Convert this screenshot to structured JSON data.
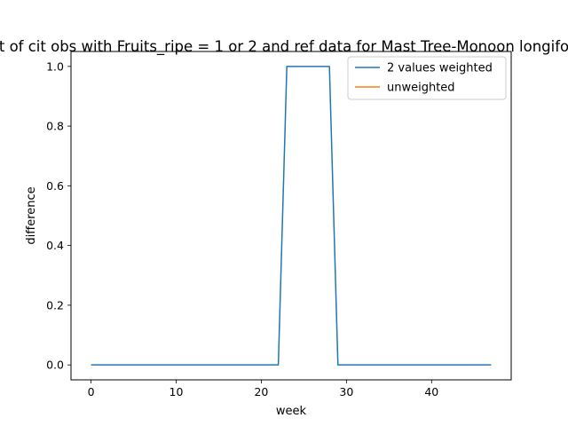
{
  "chart_data": {
    "type": "line",
    "title": "t of cit obs with Fruits_ripe = 1 or 2 and ref data for Mast Tree-Monoon longifo",
    "xlabel": "week",
    "ylabel": "difference",
    "xlim": [
      -2.35,
      49.35
    ],
    "ylim": [
      -0.05,
      1.05
    ],
    "xticks": [
      0,
      10,
      20,
      30,
      40
    ],
    "yticks": [
      0.0,
      0.2,
      0.4,
      0.6,
      0.8,
      1.0
    ],
    "xtick_labels": [
      "0",
      "10",
      "20",
      "30",
      "40"
    ],
    "ytick_labels": [
      "0.0",
      "0.2",
      "0.4",
      "0.6",
      "0.8",
      "1.0"
    ],
    "grid": false,
    "legend_position": "upper right",
    "series": [
      {
        "name": "2 values weighted",
        "color": "#1f77b4",
        "x": [
          0,
          22,
          23,
          28,
          29,
          47
        ],
        "y": [
          0,
          0,
          1,
          1,
          0,
          0
        ]
      },
      {
        "name": "unweighted",
        "color": "#ff7f0e",
        "x": [],
        "y": []
      }
    ]
  }
}
